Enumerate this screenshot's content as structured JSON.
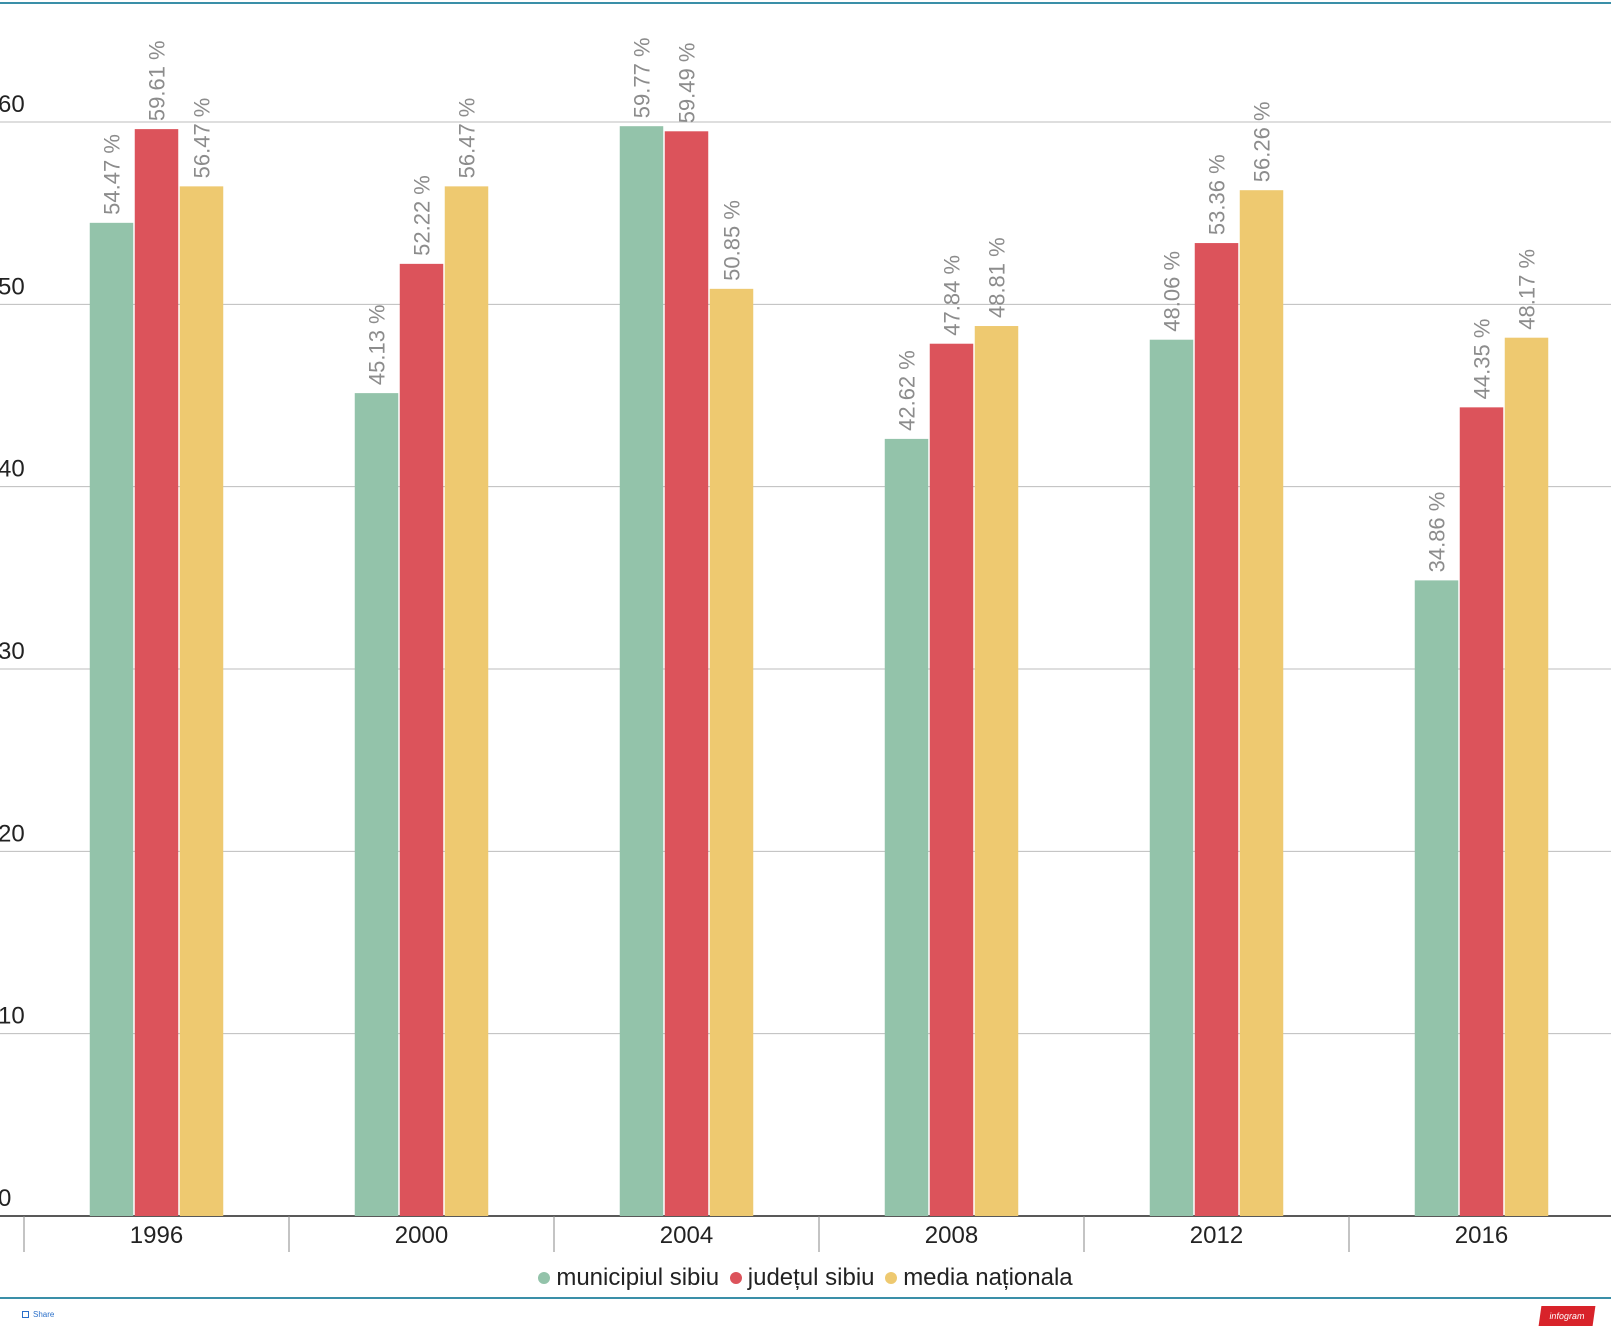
{
  "colors": {
    "municipiul": "#93c3aa",
    "judetul": "#dc535b",
    "media": "#eec970",
    "frame": "#3a8fa8",
    "grid": "#bdbdbd",
    "label": "#8c8c8c"
  },
  "chart_data": {
    "type": "bar",
    "categories": [
      "1996",
      "2000",
      "2004",
      "2008",
      "2012",
      "2016"
    ],
    "series": [
      {
        "name": "municipiul sibiu",
        "values": [
          54.47,
          45.13,
          59.77,
          42.62,
          48.06,
          34.86
        ]
      },
      {
        "name": "județul sibiu",
        "values": [
          59.61,
          52.22,
          59.49,
          47.84,
          53.36,
          44.35
        ]
      },
      {
        "name": "media naționala",
        "values": [
          56.47,
          56.47,
          50.85,
          48.81,
          56.26,
          48.17
        ]
      }
    ],
    "value_suffix": " %",
    "y_ticks": [
      "0",
      "10",
      "20",
      "30",
      "40",
      "50",
      "60"
    ],
    "ylim": [
      0,
      60
    ],
    "grid": true,
    "legend_position": "bottom-center"
  },
  "footer": {
    "share_label": "Share",
    "brand_label": "infogram"
  }
}
